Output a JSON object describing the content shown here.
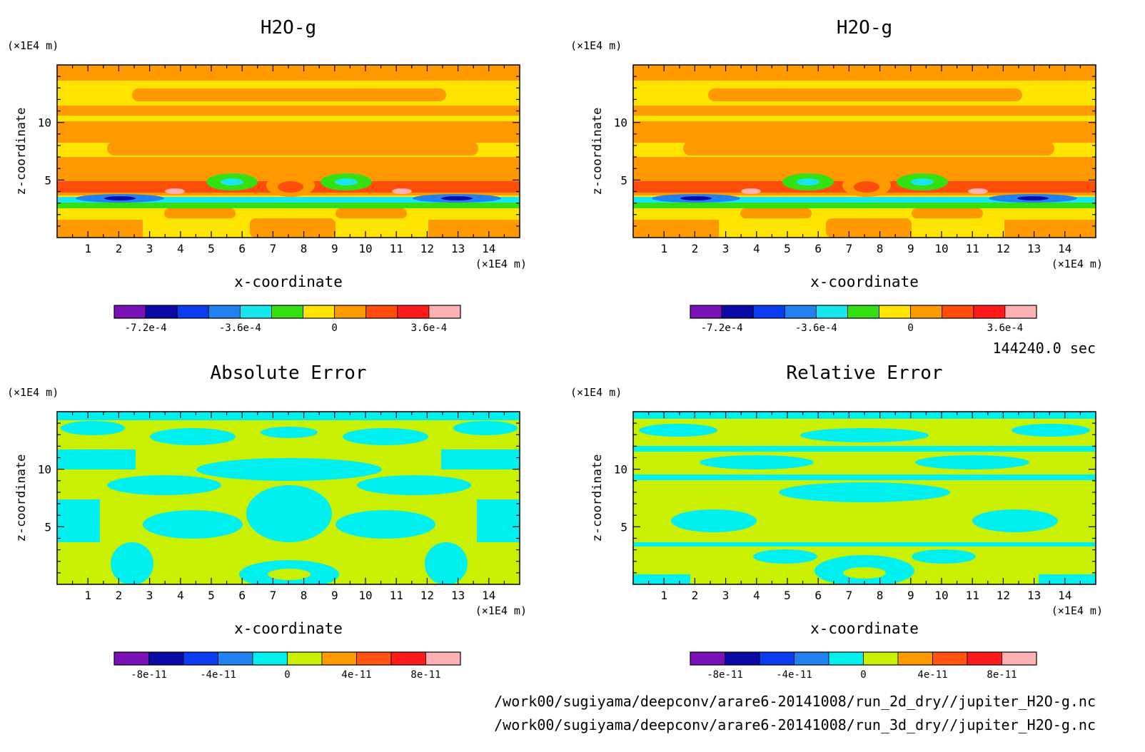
{
  "chart_data": [
    {
      "type": "heatmap",
      "title": "H2O-g",
      "xlabel": "x-coordinate",
      "ylabel": "z-coordinate",
      "x_unit": "(×1E4 m)",
      "y_unit": "(×1E4 m)",
      "xlim": [
        0,
        15
      ],
      "ylim": [
        0,
        15
      ],
      "x_ticks": [
        "1",
        "2",
        "3",
        "4",
        "5",
        "6",
        "7",
        "8",
        "9",
        "10",
        "11",
        "12",
        "13",
        "14"
      ],
      "y_ticks": [
        "5",
        "10"
      ],
      "colorbar": {
        "levels": 11,
        "colors": [
          "#7a11b8",
          "#0a0aa8",
          "#0a3cf0",
          "#1f82f0",
          "#18e6ee",
          "#33e011",
          "#ffe400",
          "#ff9900",
          "#ff4d0a",
          "#ff1a1a",
          "#ffb0b0"
        ],
        "tick_labels": [
          "-7.2e-4",
          "-3.6e-4",
          "0",
          "3.6e-4"
        ]
      }
    },
    {
      "type": "heatmap",
      "title": "H2O-g",
      "xlabel": "x-coordinate",
      "ylabel": "z-coordinate",
      "x_unit": "(×1E4 m)",
      "y_unit": "(×1E4 m)",
      "xlim": [
        0,
        15
      ],
      "ylim": [
        0,
        15
      ],
      "x_ticks": [
        "1",
        "2",
        "3",
        "4",
        "5",
        "6",
        "7",
        "8",
        "9",
        "10",
        "11",
        "12",
        "13",
        "14"
      ],
      "y_ticks": [
        "5",
        "10"
      ],
      "colorbar": {
        "levels": 11,
        "colors": [
          "#7a11b8",
          "#0a0aa8",
          "#0a3cf0",
          "#1f82f0",
          "#18e6ee",
          "#33e011",
          "#ffe400",
          "#ff9900",
          "#ff4d0a",
          "#ff1a1a",
          "#ffb0b0"
        ],
        "tick_labels": [
          "-7.2e-4",
          "-3.6e-4",
          "0",
          "3.6e-4"
        ]
      }
    },
    {
      "type": "heatmap",
      "title": "Absolute Error",
      "xlabel": "x-coordinate",
      "ylabel": "z-coordinate",
      "x_unit": "(×1E4 m)",
      "y_unit": "(×1E4 m)",
      "xlim": [
        0,
        15
      ],
      "ylim": [
        0,
        15
      ],
      "x_ticks": [
        "1",
        "2",
        "3",
        "4",
        "5",
        "6",
        "7",
        "8",
        "9",
        "10",
        "11",
        "12",
        "13",
        "14"
      ],
      "y_ticks": [
        "5",
        "10"
      ],
      "colorbar": {
        "levels": 10,
        "colors": [
          "#7a11b8",
          "#0a0aa8",
          "#0a3cf0",
          "#1f82f0",
          "#00f0f0",
          "#c8f000",
          "#ff9900",
          "#ff5511",
          "#ff1a1a",
          "#ffb0b0"
        ],
        "tick_labels": [
          "-8e-11",
          "-4e-11",
          "0",
          "4e-11",
          "8e-11"
        ]
      }
    },
    {
      "type": "heatmap",
      "title": "Relative Error",
      "xlabel": "x-coordinate",
      "ylabel": "z-coordinate",
      "x_unit": "(×1E4 m)",
      "y_unit": "(×1E4 m)",
      "xlim": [
        0,
        15
      ],
      "ylim": [
        0,
        15
      ],
      "x_ticks": [
        "1",
        "2",
        "3",
        "4",
        "5",
        "6",
        "7",
        "8",
        "9",
        "10",
        "11",
        "12",
        "13",
        "14"
      ],
      "y_ticks": [
        "5",
        "10"
      ],
      "colorbar": {
        "levels": 10,
        "colors": [
          "#7a11b8",
          "#0a0aa8",
          "#0a3cf0",
          "#1f82f0",
          "#00f0f0",
          "#c8f000",
          "#ff9900",
          "#ff5511",
          "#ff1a1a",
          "#ffb0b0"
        ],
        "tick_labels": [
          "-8e-11",
          "-4e-11",
          "0",
          "4e-11",
          "8e-11"
        ]
      }
    }
  ],
  "time_label": "144240.0 sec",
  "file_paths": [
    "/work00/sugiyama/deepconv/arare6-20141008/run_2d_dry//jupiter_H2O-g.nc",
    "/work00/sugiyama/deepconv/arare6-20141008/run_3d_dry//jupiter_H2O-g.nc"
  ]
}
